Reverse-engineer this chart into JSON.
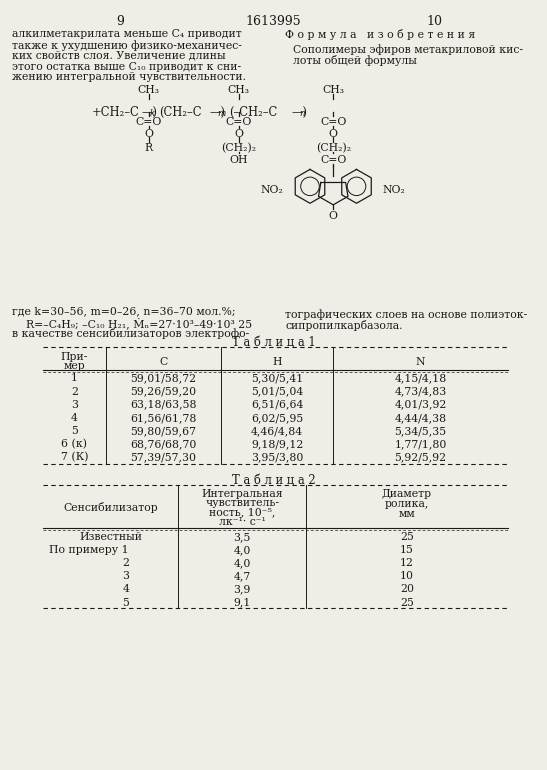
{
  "page_numbers": [
    "9",
    "1613995",
    "10"
  ],
  "left_text": [
    "алкилметакрилата меньше C₄ приводит",
    "также к ухудшению физико-механичес-",
    "ких свойств слоя. Увеличение длины",
    "этого остатка выше C₁₀ приводит к сни-",
    "жению интегральной чувствительности."
  ],
  "right_text_header": "Ф о р м у л а   и з о б р е т е н и я",
  "right_text_body1": "Сополимеры эфиров метакриловой кис-",
  "right_text_body2": "лоты общей формулы",
  "where1": "где k=30–56, m=0–26, n=36–70 мол.%;",
  "where2": "    R=–C₄H₉; –C₁₀ H₂₁, Ṁₙ=27·10³–49·10³ 25",
  "where3": "в качестве сенсибилизаторов электрофо-",
  "right_where1": "тографических слоев на основе полиэток-",
  "right_where2": "сипропилкарбазола.",
  "table1_title": "Т а б л и ц а 1",
  "table1_rows": [
    [
      "1",
      "59,01/58,72",
      "5,30/5,41",
      "4,15/4,18"
    ],
    [
      "2",
      "59,26/59,20",
      "5,01/5,04",
      "4,73/4,83"
    ],
    [
      "3",
      "63,18/63,58",
      "6,51/6,64",
      "4,01/3,92"
    ],
    [
      "4",
      "61,56/61,78",
      "6,02/5,95",
      "4,44/4,38"
    ],
    [
      "5",
      "59,80/59,67",
      "4,46/4,84",
      "5,34/5,35"
    ],
    [
      "6 (к)",
      "68,76/68,70",
      "9,18/9,12",
      "1,77/1,80"
    ],
    [
      "7 (К)",
      "57,39/57,30",
      "3,95/3,80",
      "5,92/5,92"
    ]
  ],
  "table2_title": "Т а б л и ц а 2",
  "table2_rows": [
    [
      "Известный",
      "3,5",
      "25"
    ],
    [
      "По примеру 1",
      "4,0",
      "15"
    ],
    [
      "2",
      "4,0",
      "12"
    ],
    [
      "3",
      "4,7",
      "10"
    ],
    [
      "4",
      "3,9",
      "20"
    ],
    [
      "5",
      "9,1",
      "25"
    ]
  ],
  "bg_color": "#f0ede6",
  "text_color": "#1a1a1a"
}
